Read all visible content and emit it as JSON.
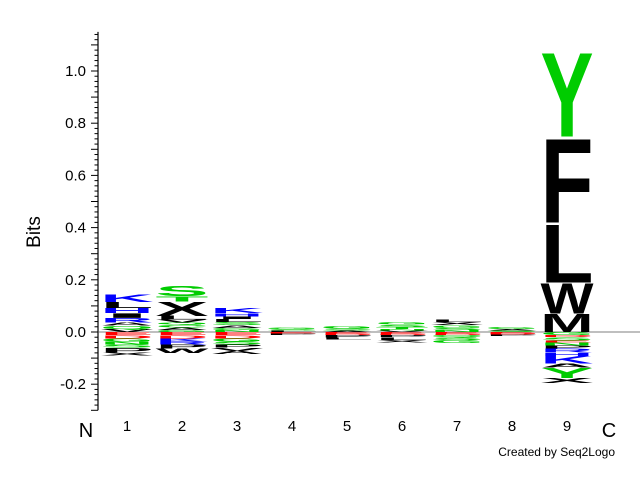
{
  "chart_data": {
    "type": "sequence-logo",
    "ylabel": "Bits",
    "ylim": [
      -0.3,
      1.15
    ],
    "yticks": [
      -0.2,
      0.0,
      0.2,
      0.4,
      0.6,
      0.8,
      1.0
    ],
    "ytick_labels": [
      "-0.2",
      "0.0",
      "0.2",
      "0.4",
      "0.6",
      "0.8",
      "1.0"
    ],
    "positions": [
      "1",
      "2",
      "3",
      "4",
      "5",
      "6",
      "7",
      "8",
      "9"
    ],
    "n_label": "N",
    "c_label": "C",
    "credit": "Created by Seq2Logo",
    "residue_colors": {
      "Y": "#00cc00",
      "S": "#00cc00",
      "T": "#00cc00",
      "G": "#00cc00",
      "C": "#00cc00",
      "N": "#00cc00",
      "Q": "#00cc00",
      "K": "#0000ff",
      "R": "#0000ff",
      "H": "#0000ff",
      "D": "#ff0000",
      "E": "#ff0000",
      "F": "#000000",
      "L": "#000000",
      "W": "#000000",
      "M": "#000000",
      "I": "#000000",
      "V": "#000000",
      "A": "#000000",
      "P": "#000000",
      "X": "#000000"
    },
    "columns": [
      {
        "position": "1",
        "positive": [
          {
            "aa": "V",
            "bits": 0.012
          },
          {
            "aa": "Q",
            "bits": 0.012
          },
          {
            "aa": "A",
            "bits": 0.012
          },
          {
            "aa": "R",
            "bits": 0.018
          },
          {
            "aa": "I",
            "bits": 0.018
          },
          {
            "aa": "H",
            "bits": 0.02
          },
          {
            "aa": "L",
            "bits": 0.022
          },
          {
            "aa": "K",
            "bits": 0.03
          }
        ],
        "negative": [
          {
            "aa": "E",
            "bits": 0.012
          },
          {
            "aa": "D",
            "bits": 0.012
          },
          {
            "aa": "G",
            "bits": 0.012
          },
          {
            "aa": "N",
            "bits": 0.012
          },
          {
            "aa": "S",
            "bits": 0.012
          },
          {
            "aa": "P",
            "bits": 0.018
          },
          {
            "aa": "X",
            "bits": 0.012
          }
        ]
      },
      {
        "position": "2",
        "positive": [
          {
            "aa": "G",
            "bits": 0.008
          },
          {
            "aa": "A",
            "bits": 0.01
          },
          {
            "aa": "C",
            "bits": 0.01
          },
          {
            "aa": "Q",
            "bits": 0.008
          },
          {
            "aa": "V",
            "bits": 0.012
          },
          {
            "aa": "L",
            "bits": 0.014
          },
          {
            "aa": "X",
            "bits": 0.055
          },
          {
            "aa": "T",
            "bits": 0.02
          },
          {
            "aa": "S",
            "bits": 0.04
          }
        ],
        "negative": [
          {
            "aa": "E",
            "bits": 0.012
          },
          {
            "aa": "D",
            "bits": 0.012
          },
          {
            "aa": "K",
            "bits": 0.012
          },
          {
            "aa": "R",
            "bits": 0.012
          },
          {
            "aa": "P",
            "bits": 0.015
          },
          {
            "aa": "W",
            "bits": 0.018
          }
        ]
      },
      {
        "position": "3",
        "positive": [
          {
            "aa": "N",
            "bits": 0.008
          },
          {
            "aa": "G",
            "bits": 0.008
          },
          {
            "aa": "A",
            "bits": 0.01
          },
          {
            "aa": "S",
            "bits": 0.012
          },
          {
            "aa": "L",
            "bits": 0.012
          },
          {
            "aa": "I",
            "bits": 0.01
          },
          {
            "aa": "H",
            "bits": 0.012
          },
          {
            "aa": "K",
            "bits": 0.02
          }
        ],
        "negative": [
          {
            "aa": "E",
            "bits": 0.012
          },
          {
            "aa": "D",
            "bits": 0.012
          },
          {
            "aa": "G",
            "bits": 0.012
          },
          {
            "aa": "S",
            "bits": 0.012
          },
          {
            "aa": "P",
            "bits": 0.012
          },
          {
            "aa": "V",
            "bits": 0.012
          },
          {
            "aa": "A",
            "bits": 0.012
          }
        ]
      },
      {
        "position": "4",
        "positive": [
          {
            "aa": "L",
            "bits": 0.006
          },
          {
            "aa": "S",
            "bits": 0.005
          },
          {
            "aa": "G",
            "bits": 0.006
          }
        ],
        "negative": [
          {
            "aa": "E",
            "bits": 0.005
          },
          {
            "aa": "P",
            "bits": 0.006
          }
        ]
      },
      {
        "position": "5",
        "positive": [
          {
            "aa": "A",
            "bits": 0.006
          },
          {
            "aa": "S",
            "bits": 0.008
          },
          {
            "aa": "G",
            "bits": 0.01
          }
        ],
        "negative": [
          {
            "aa": "E",
            "bits": 0.005
          },
          {
            "aa": "D",
            "bits": 0.006
          },
          {
            "aa": "P",
            "bits": 0.01
          },
          {
            "aa": "L",
            "bits": 0.008
          }
        ]
      },
      {
        "position": "6",
        "positive": [
          {
            "aa": "V",
            "bits": 0.006
          },
          {
            "aa": "N",
            "bits": 0.006
          },
          {
            "aa": "T",
            "bits": 0.008
          },
          {
            "aa": "S",
            "bits": 0.008
          },
          {
            "aa": "G",
            "bits": 0.01
          }
        ],
        "negative": [
          {
            "aa": "E",
            "bits": 0.006
          },
          {
            "aa": "D",
            "bits": 0.006
          },
          {
            "aa": "P",
            "bits": 0.008
          },
          {
            "aa": "L",
            "bits": 0.01
          },
          {
            "aa": "X",
            "bits": 0.01
          }
        ]
      },
      {
        "position": "7",
        "positive": [
          {
            "aa": "N",
            "bits": 0.008
          },
          {
            "aa": "S",
            "bits": 0.008
          },
          {
            "aa": "G",
            "bits": 0.01
          },
          {
            "aa": "X",
            "bits": 0.012
          },
          {
            "aa": "L",
            "bits": 0.01
          }
        ],
        "negative": [
          {
            "aa": "E",
            "bits": 0.006
          },
          {
            "aa": "D",
            "bits": 0.006
          },
          {
            "aa": "Q",
            "bits": 0.008
          },
          {
            "aa": "S",
            "bits": 0.01
          },
          {
            "aa": "G",
            "bits": 0.012
          }
        ]
      },
      {
        "position": "8",
        "positive": [
          {
            "aa": "S",
            "bits": 0.006
          },
          {
            "aa": "A",
            "bits": 0.006
          },
          {
            "aa": "G",
            "bits": 0.008
          }
        ],
        "negative": [
          {
            "aa": "E",
            "bits": 0.005
          },
          {
            "aa": "D",
            "bits": 0.005
          },
          {
            "aa": "P",
            "bits": 0.006
          }
        ]
      },
      {
        "position": "9",
        "positive": [
          {
            "aa": "M",
            "bits": 0.07
          },
          {
            "aa": "W",
            "bits": 0.12
          },
          {
            "aa": "L",
            "bits": 0.23
          },
          {
            "aa": "F",
            "bits": 0.33
          },
          {
            "aa": "Y",
            "bits": 0.33
          }
        ],
        "negative": [
          {
            "aa": "G",
            "bits": 0.012
          },
          {
            "aa": "D",
            "bits": 0.008
          },
          {
            "aa": "S",
            "bits": 0.012
          },
          {
            "aa": "E",
            "bits": 0.008
          },
          {
            "aa": "N",
            "bits": 0.012
          },
          {
            "aa": "P",
            "bits": 0.012
          },
          {
            "aa": "R",
            "bits": 0.015
          },
          {
            "aa": "H",
            "bits": 0.012
          },
          {
            "aa": "K",
            "bits": 0.03
          },
          {
            "aa": "A",
            "bits": 0.015
          },
          {
            "aa": "Y",
            "bits": 0.04
          },
          {
            "aa": "X",
            "bits": 0.02
          }
        ]
      }
    ]
  }
}
